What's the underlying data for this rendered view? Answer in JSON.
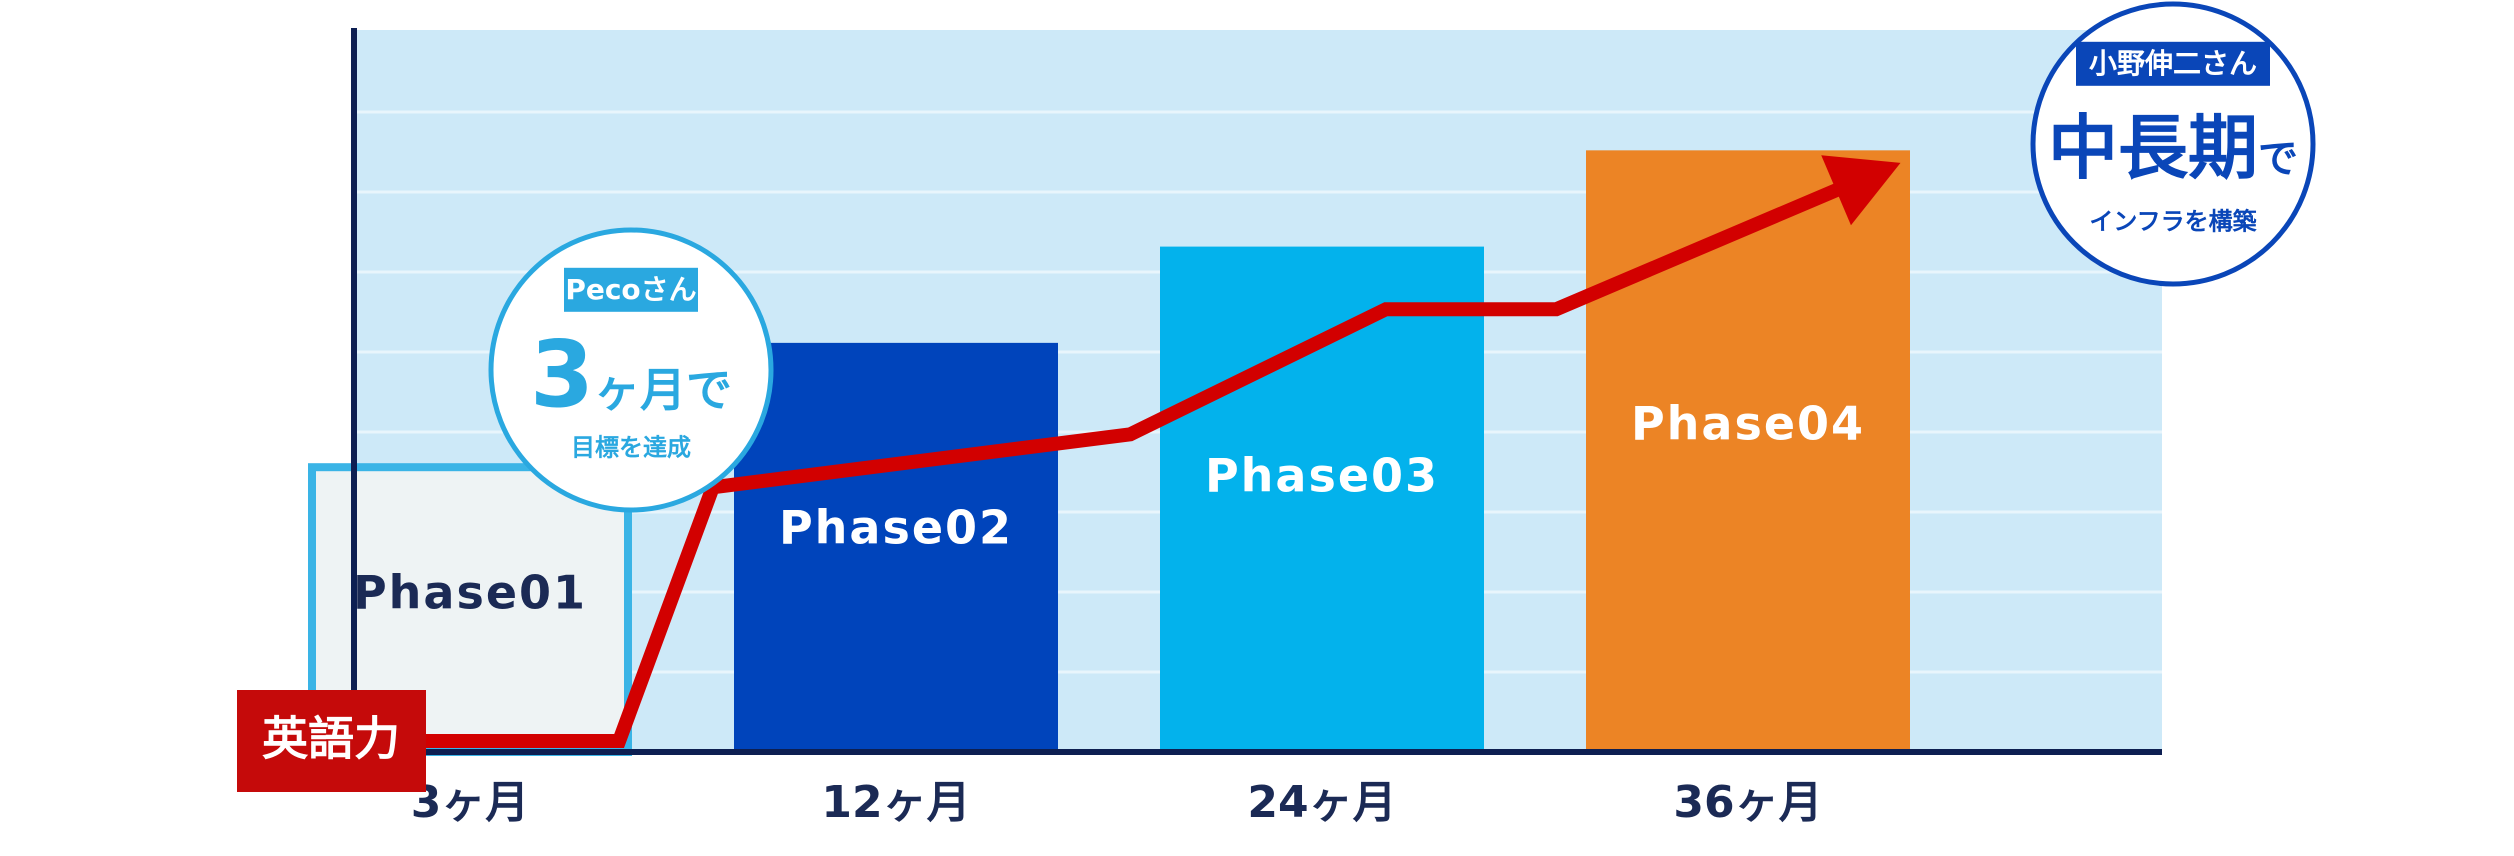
{
  "chart_data": {
    "type": "bar",
    "categories": [
      "3ヶ月",
      "12ヶ月",
      "24ヶ月",
      "36ヶ月"
    ],
    "bars": [
      {
        "label": "Phase01",
        "value": 1.8,
        "style": "outline"
      },
      {
        "label": "Phase02",
        "value": 2.55,
        "style": "fill"
      },
      {
        "label": "Phase03",
        "value": 3.15,
        "style": "fill"
      },
      {
        "label": "Phase04",
        "value": 3.75,
        "style": "fill"
      }
    ],
    "ylim": [
      0,
      4.5
    ],
    "grid": true,
    "line": {
      "name": "英語力",
      "points": [
        {
          "x": 0.0,
          "y": 0.0
        },
        {
          "x": 0.35,
          "y": 0.0
        },
        {
          "x": 0.57,
          "y": 1.65
        },
        {
          "x": 1.55,
          "y": 1.98
        },
        {
          "x": 2.15,
          "y": 2.76
        },
        {
          "x": 2.55,
          "y": 2.76
        },
        {
          "x": 3.25,
          "y": 3.55
        }
      ]
    },
    "callouts": [
      {
        "name": "Pecoさん",
        "main_large": "3",
        "main_small": "ヶ月",
        "main_tail": "で",
        "sub": "目標を達成"
      },
      {
        "name": "小野伸二さん",
        "main_large": "中長期",
        "main_tail": "で",
        "sub": "インフラを構築"
      }
    ]
  },
  "colors": {
    "plot_bg": "#cde9f8",
    "grid": "#e8f5fc",
    "axis": "#0d1f52",
    "phase01_fill": "#eef3f4",
    "phase01_border": "#3ab4e6",
    "phase01_text": "#1b2a55",
    "phase02": "#0044bb",
    "phase03": "#03b2ec",
    "phase04": "#ec8425",
    "line": "#d20000",
    "label_box": "#c50a0a",
    "callout1": "#2aa8e0",
    "callout2": "#0a46b8",
    "tick_text": "#1b2a55",
    "bar_text": "#ffffff"
  }
}
